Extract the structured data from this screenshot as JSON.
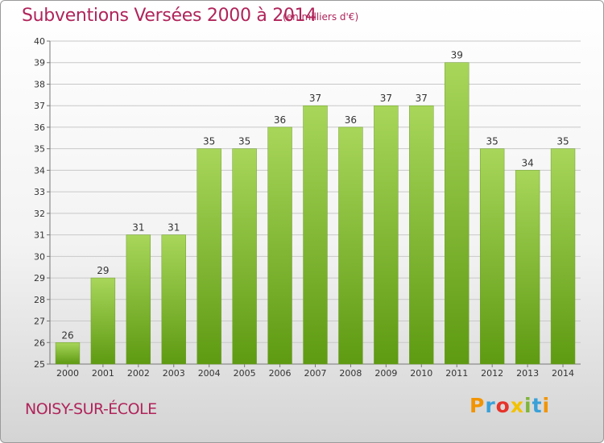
{
  "header": {
    "title": "Subventions Versées 2000 à 2014",
    "unit_note": "(en milliers d'€)"
  },
  "footer": {
    "place": "NOISY-SUR-ÉCOLE",
    "logo_letters": [
      "P",
      "r",
      "o",
      "x",
      "i",
      "t",
      "i"
    ],
    "logo_colors": [
      "#f29400",
      "#3aa0d8",
      "#e6332a",
      "#f2c200",
      "#7fb539",
      "#3aa0d8",
      "#f29400"
    ]
  },
  "colors": {
    "bar_light": "#a8d65a",
    "bar_dark": "#5e9a12",
    "grid": "#c8c8c8",
    "title": "#b0245a"
  },
  "chart_data": {
    "type": "bar",
    "categories": [
      "2000",
      "2001",
      "2002",
      "2003",
      "2004",
      "2005",
      "2006",
      "2007",
      "2008",
      "2009",
      "2010",
      "2011",
      "2012",
      "2013",
      "2014"
    ],
    "values": [
      26,
      29,
      31,
      31,
      35,
      35,
      36,
      37,
      36,
      37,
      37,
      39,
      35,
      34,
      35
    ],
    "ylim": [
      25,
      40
    ],
    "yticks": [
      25,
      26,
      27,
      28,
      29,
      30,
      31,
      32,
      33,
      34,
      35,
      36,
      37,
      38,
      39,
      40
    ],
    "grid": true,
    "data_labels": true
  }
}
